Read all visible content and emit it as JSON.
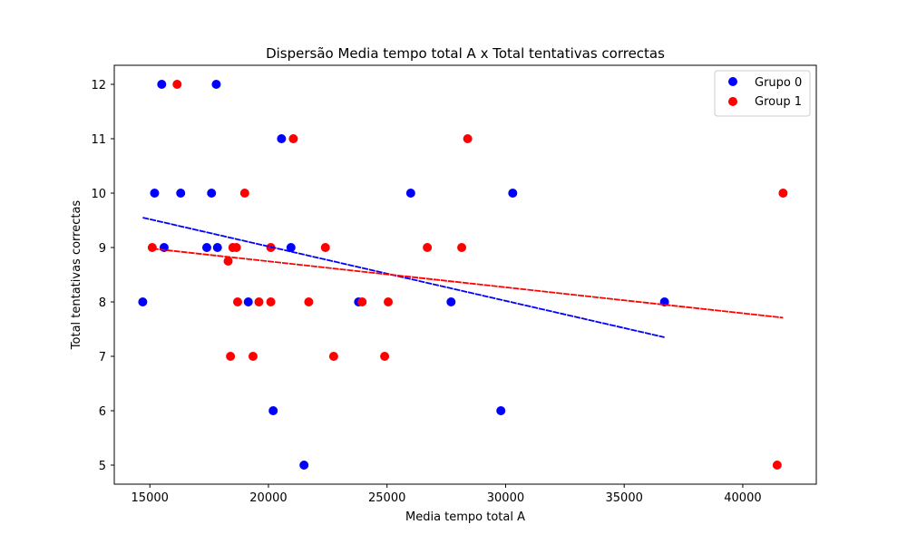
{
  "chart_data": {
    "type": "scatter",
    "title": "Dispersão Media tempo total A x Total tentativas correctas",
    "xlabel": "Media tempo total A",
    "ylabel": "Total tentativas correctas",
    "xlim": [
      13500,
      43100
    ],
    "ylim": [
      4.65,
      12.35
    ],
    "x_ticks": [
      15000,
      20000,
      25000,
      30000,
      35000,
      40000
    ],
    "y_ticks": [
      5,
      6,
      7,
      8,
      9,
      10,
      11,
      12
    ],
    "grid": false,
    "legend_position": "top-right",
    "series": [
      {
        "name": "Grupo 0",
        "color": "#0000ff",
        "points": [
          [
            14700,
            8
          ],
          [
            15200,
            10
          ],
          [
            15500,
            12
          ],
          [
            15600,
            9
          ],
          [
            16300,
            10
          ],
          [
            17400,
            9
          ],
          [
            17600,
            10
          ],
          [
            17800,
            12
          ],
          [
            17850,
            9
          ],
          [
            19150,
            8
          ],
          [
            20200,
            6
          ],
          [
            20550,
            11
          ],
          [
            20950,
            9
          ],
          [
            21500,
            5
          ],
          [
            23800,
            8
          ],
          [
            26000,
            10
          ],
          [
            27700,
            8
          ],
          [
            29800,
            6
          ],
          [
            30300,
            10
          ],
          [
            36700,
            8
          ]
        ],
        "trend": {
          "x": [
            14700,
            36700
          ],
          "y": [
            9.55,
            7.35
          ]
        }
      },
      {
        "name": "Group 1",
        "color": "#ff0000",
        "points": [
          [
            15100,
            9
          ],
          [
            16150,
            12
          ],
          [
            18300,
            8.75
          ],
          [
            18400,
            7
          ],
          [
            18500,
            9
          ],
          [
            18650,
            9
          ],
          [
            18700,
            8
          ],
          [
            19000,
            10
          ],
          [
            19350,
            7
          ],
          [
            19600,
            8
          ],
          [
            20100,
            9
          ],
          [
            20100,
            8
          ],
          [
            21050,
            11
          ],
          [
            21700,
            8
          ],
          [
            22400,
            9
          ],
          [
            22750,
            7
          ],
          [
            23950,
            8
          ],
          [
            24900,
            7
          ],
          [
            25050,
            8
          ],
          [
            26700,
            9
          ],
          [
            28150,
            9
          ],
          [
            28400,
            11
          ],
          [
            41450,
            5
          ],
          [
            41700,
            10
          ]
        ],
        "trend": {
          "x": [
            15100,
            41700
          ],
          "y": [
            8.98,
            7.71
          ]
        }
      }
    ]
  }
}
